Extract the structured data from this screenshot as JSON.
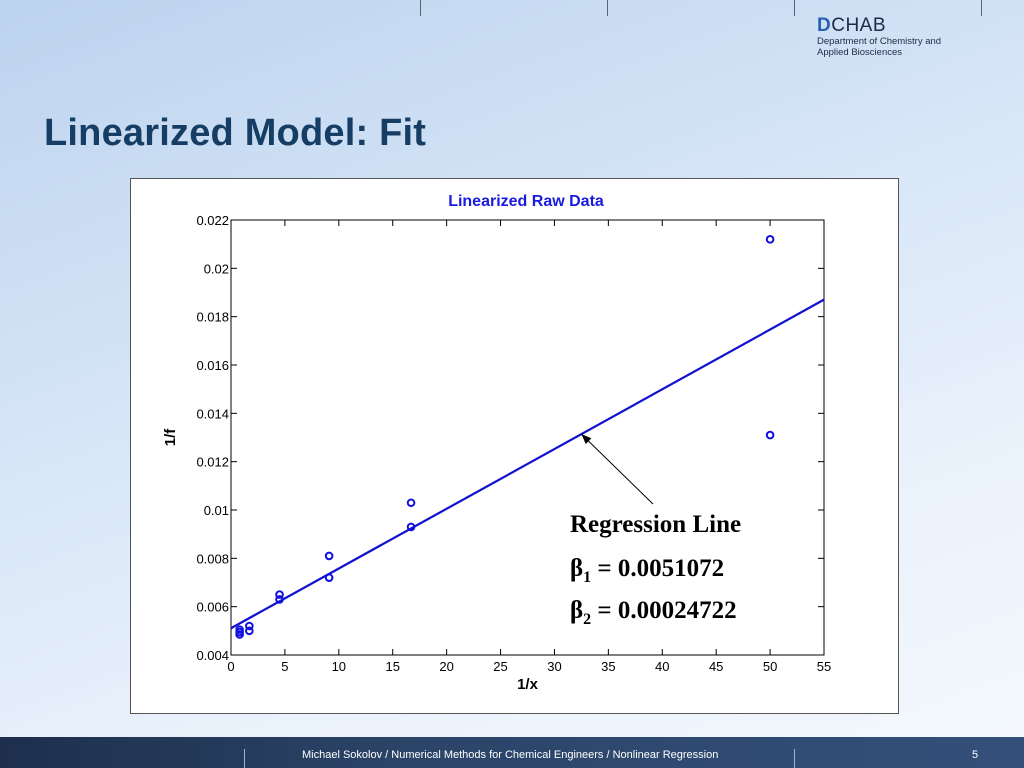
{
  "header": {
    "logo_main_letter": "D",
    "logo_main_rest": "CHAB",
    "logo_sub_line1": "Department of Chemistry and",
    "logo_sub_line2": "Applied Biosciences"
  },
  "slide_title": "Linearized Model: Fit",
  "chart_data": {
    "type": "scatter",
    "title": "Linearized Raw Data",
    "xlabel": "1/x",
    "ylabel": "1/f",
    "xlim": [
      0,
      55
    ],
    "ylim": [
      0.004,
      0.022
    ],
    "xticks": [
      0,
      5,
      10,
      15,
      20,
      25,
      30,
      35,
      40,
      45,
      50,
      55
    ],
    "xtick_labels": [
      "0",
      "5",
      "10",
      "15",
      "20",
      "25",
      "30",
      "35",
      "40",
      "45",
      "50",
      "55"
    ],
    "yticks": [
      0.004,
      0.006,
      0.008,
      0.01,
      0.012,
      0.014,
      0.016,
      0.018,
      0.02,
      0.022
    ],
    "ytick_labels": [
      "0.004",
      "0.006",
      "0.008",
      "0.01",
      "0.012",
      "0.014",
      "0.016",
      "0.018",
      "0.02",
      "0.022"
    ],
    "grid": false,
    "colors": {
      "data": "#1010e0",
      "line": "#1010d0",
      "title": "#1a1ae0"
    },
    "points": {
      "x": [
        0.8,
        0.8,
        0.8,
        1.7,
        1.7,
        4.5,
        4.5,
        9.1,
        9.1,
        16.7,
        16.7,
        50,
        50
      ],
      "y": [
        0.00485,
        0.00495,
        0.00505,
        0.005,
        0.0052,
        0.0063,
        0.0065,
        0.0072,
        0.0081,
        0.0093,
        0.0103,
        0.0212,
        0.0131
      ]
    },
    "regression_line": {
      "x": [
        0,
        55
      ],
      "y": [
        0.0051072,
        0.0187043
      ]
    },
    "annotation": {
      "heading": "Regression Line",
      "beta1_symbol": "β",
      "beta1_sub": "1",
      "beta1_value": " = 0.0051072",
      "beta2_symbol": "β",
      "beta2_sub": "2",
      "beta2_value": " = 0.00024722",
      "arrow_target": {
        "x": 32.5,
        "y": 0.01314
      }
    }
  },
  "footer": {
    "text": "Michael Sokolov / Numerical Methods for Chemical Engineers / Nonlinear Regression",
    "page_number": "5"
  }
}
